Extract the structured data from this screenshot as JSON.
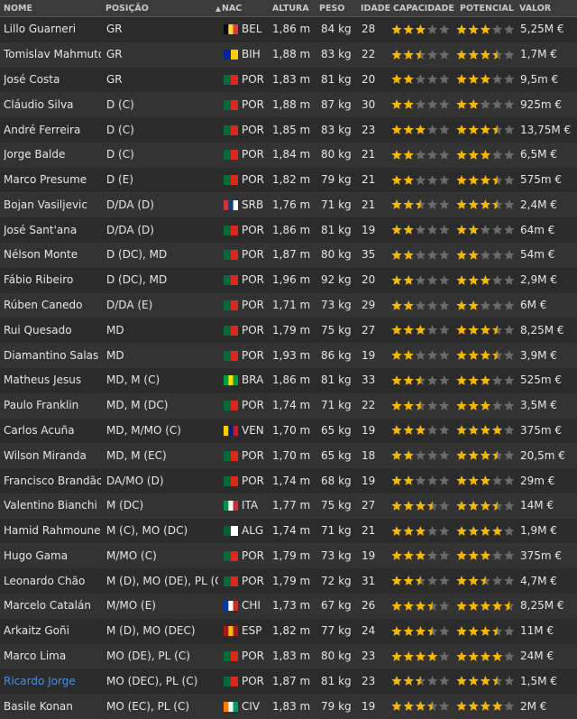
{
  "table": {
    "headers": [
      "NOME",
      "POSIÇÃO",
      "NAC",
      "ALTURA",
      "PESO",
      "IDADE",
      "CAPACIDADE",
      "POTENCIAL",
      "VALOR"
    ],
    "rows": [
      {
        "name": "Lillo Guarneri",
        "position": "GR",
        "nation": "BEL",
        "flag": [
          "#000000",
          "#fdda24",
          "#ef3340"
        ],
        "height": "1,86 m",
        "weight": "84 kg",
        "age": 28,
        "capacity": 3,
        "potential": 3,
        "value": "5,25M €"
      },
      {
        "name": "Tomislav Mahmutović",
        "position": "GR",
        "nation": "BIH",
        "flag": [
          "#002395",
          "#fecb00"
        ],
        "height": "1,88 m",
        "weight": "83 kg",
        "age": 22,
        "capacity": 2.5,
        "potential": 3.5,
        "value": "1,7M €"
      },
      {
        "name": "José Costa",
        "position": "GR",
        "nation": "POR",
        "flag": [
          "#046a38",
          "#da291c"
        ],
        "height": "1,83 m",
        "weight": "81 kg",
        "age": 20,
        "capacity": 2,
        "potential": 3,
        "value": "9,5m €"
      },
      {
        "name": "Cláudio Silva",
        "position": "D (C)",
        "nation": "POR",
        "flag": [
          "#046a38",
          "#da291c"
        ],
        "height": "1,88 m",
        "weight": "87 kg",
        "age": 30,
        "capacity": 2,
        "potential": 2,
        "value": "925m €"
      },
      {
        "name": "André Ferreira",
        "position": "D (C)",
        "nation": "POR",
        "flag": [
          "#046a38",
          "#da291c"
        ],
        "height": "1,85 m",
        "weight": "83 kg",
        "age": 23,
        "capacity": 3,
        "potential": 3.5,
        "value": "13,75M €"
      },
      {
        "name": "Jorge Balde",
        "position": "D (C)",
        "nation": "POR",
        "flag": [
          "#046a38",
          "#da291c"
        ],
        "height": "1,84 m",
        "weight": "80 kg",
        "age": 21,
        "capacity": 2,
        "potential": 3,
        "value": "6,5M €"
      },
      {
        "name": "Marco Presume",
        "position": "D (E)",
        "nation": "POR",
        "flag": [
          "#046a38",
          "#da291c"
        ],
        "height": "1,82 m",
        "weight": "79 kg",
        "age": 21,
        "capacity": 2,
        "potential": 3.5,
        "value": "575m €"
      },
      {
        "name": "Bojan Vasiljevic",
        "position": "D/DA (D)",
        "nation": "SRB",
        "flag": [
          "#c6363c",
          "#0c4076",
          "#ffffff"
        ],
        "height": "1,76 m",
        "weight": "71 kg",
        "age": 21,
        "capacity": 2.5,
        "potential": 3.5,
        "value": "2,4M €"
      },
      {
        "name": "José Sant'ana",
        "position": "D/DA (D)",
        "nation": "POR",
        "flag": [
          "#046a38",
          "#da291c"
        ],
        "height": "1,86 m",
        "weight": "81 kg",
        "age": 19,
        "capacity": 2,
        "potential": 2,
        "value": "64m €"
      },
      {
        "name": "Nélson Monte",
        "position": "D (DC), MD",
        "nation": "POR",
        "flag": [
          "#046a38",
          "#da291c"
        ],
        "height": "1,87 m",
        "weight": "80 kg",
        "age": 35,
        "capacity": 2,
        "potential": 2,
        "value": "54m €"
      },
      {
        "name": "Fábio Ribeiro",
        "position": "D (DC), MD",
        "nation": "POR",
        "flag": [
          "#046a38",
          "#da291c"
        ],
        "height": "1,96 m",
        "weight": "92 kg",
        "age": 20,
        "capacity": 2,
        "potential": 3,
        "value": "2,9M €"
      },
      {
        "name": "Rúben Canedo",
        "position": "D/DA (E)",
        "nation": "POR",
        "flag": [
          "#046a38",
          "#da291c"
        ],
        "height": "1,71 m",
        "weight": "73 kg",
        "age": 29,
        "capacity": 2,
        "potential": 2,
        "value": "6M €"
      },
      {
        "name": "Rui Quesado",
        "position": "MD",
        "nation": "POR",
        "flag": [
          "#046a38",
          "#da291c"
        ],
        "height": "1,79 m",
        "weight": "75 kg",
        "age": 27,
        "capacity": 3,
        "potential": 3.5,
        "value": "8,25M €"
      },
      {
        "name": "Diamantino Salas",
        "position": "MD",
        "nation": "POR",
        "flag": [
          "#046a38",
          "#da291c"
        ],
        "height": "1,93 m",
        "weight": "86 kg",
        "age": 19,
        "capacity": 2,
        "potential": 3.5,
        "value": "3,9M €"
      },
      {
        "name": "Matheus Jesus",
        "position": "MD, M (C)",
        "nation": "BRA",
        "flag": [
          "#009c3b",
          "#ffdf00",
          "#009c3b"
        ],
        "height": "1,86 m",
        "weight": "81 kg",
        "age": 33,
        "capacity": 2.5,
        "potential": 3,
        "value": "525m €"
      },
      {
        "name": "Paulo Franklin",
        "position": "MD, M (DC)",
        "nation": "POR",
        "flag": [
          "#046a38",
          "#da291c"
        ],
        "height": "1,74 m",
        "weight": "71 kg",
        "age": 22,
        "capacity": 2.5,
        "potential": 3,
        "value": "3,5M €"
      },
      {
        "name": "Carlos Acuña",
        "position": "MD, M/MO (C)",
        "nation": "VEN",
        "flag": [
          "#ffcc00",
          "#00247d",
          "#cf142b"
        ],
        "height": "1,70 m",
        "weight": "65 kg",
        "age": 19,
        "capacity": 3,
        "potential": 4,
        "value": "375m €"
      },
      {
        "name": "Wilson Miranda",
        "position": "MD, M (EC)",
        "nation": "POR",
        "flag": [
          "#046a38",
          "#da291c"
        ],
        "height": "1,70 m",
        "weight": "65 kg",
        "age": 18,
        "capacity": 2,
        "potential": 3.5,
        "value": "20,5m €"
      },
      {
        "name": "Francisco Brandão",
        "position": "DA/MO (D)",
        "nation": "POR",
        "flag": [
          "#046a38",
          "#da291c"
        ],
        "height": "1,74 m",
        "weight": "68 kg",
        "age": 19,
        "capacity": 2,
        "potential": 3,
        "value": "29m €"
      },
      {
        "name": "Valentino Bianchi",
        "position": "M (DC)",
        "nation": "ITA",
        "flag": [
          "#009246",
          "#ffffff",
          "#ce2b37"
        ],
        "height": "1,77 m",
        "weight": "75 kg",
        "age": 27,
        "capacity": 3.5,
        "potential": 3.5,
        "value": "14M €"
      },
      {
        "name": "Hamid Rahmoune",
        "position": "M (C), MO (DC)",
        "nation": "ALG",
        "flag": [
          "#006233",
          "#ffffff"
        ],
        "height": "1,74 m",
        "weight": "71 kg",
        "age": 21,
        "capacity": 3,
        "potential": 4,
        "value": "1,9M €"
      },
      {
        "name": "Hugo Gama",
        "position": "M/MO (C)",
        "nation": "POR",
        "flag": [
          "#046a38",
          "#da291c"
        ],
        "height": "1,79 m",
        "weight": "73 kg",
        "age": 19,
        "capacity": 3,
        "potential": 3,
        "value": "375m €"
      },
      {
        "name": "Leonardo Chão",
        "position": "M (D), MO (DE), PL (C)",
        "nation": "POR",
        "flag": [
          "#046a38",
          "#da291c"
        ],
        "height": "1,79 m",
        "weight": "72 kg",
        "age": 31,
        "capacity": 2.5,
        "potential": 2.5,
        "value": "4,7M €"
      },
      {
        "name": "Marcelo Catalán",
        "position": "M/MO (E)",
        "nation": "CHI",
        "flag": [
          "#0039a6",
          "#ffffff",
          "#d52b1e"
        ],
        "height": "1,73 m",
        "weight": "67 kg",
        "age": 26,
        "capacity": 3.5,
        "potential": 4.5,
        "value": "8,25M €"
      },
      {
        "name": "Arkaitz Goñi",
        "position": "M (D), MO (DEC)",
        "nation": "ESP",
        "flag": [
          "#aa151b",
          "#f1bf00",
          "#aa151b"
        ],
        "height": "1,82 m",
        "weight": "77 kg",
        "age": 24,
        "capacity": 3.5,
        "potential": 3.5,
        "value": "11M €"
      },
      {
        "name": "Marco Lima",
        "position": "MO (DE), PL (C)",
        "nation": "POR",
        "flag": [
          "#046a38",
          "#da291c"
        ],
        "height": "1,83 m",
        "weight": "80 kg",
        "age": 23,
        "capacity": 4,
        "potential": 4,
        "value": "24M €"
      },
      {
        "name": "Ricardo Jorge",
        "position": "MO (DEC), PL (C)",
        "nation": "POR",
        "flag": [
          "#046a38",
          "#da291c"
        ],
        "height": "1,87 m",
        "weight": "81 kg",
        "age": 23,
        "capacity": 2.5,
        "potential": 3.5,
        "value": "1,5M €",
        "link": true
      },
      {
        "name": "Basile Konan",
        "position": "MO (EC), PL (C)",
        "nation": "CIV",
        "flag": [
          "#f77f00",
          "#ffffff",
          "#009e60"
        ],
        "height": "1,83 m",
        "weight": "79 kg",
        "age": 19,
        "capacity": 3.5,
        "potential": 4,
        "value": "2M €"
      }
    ]
  }
}
